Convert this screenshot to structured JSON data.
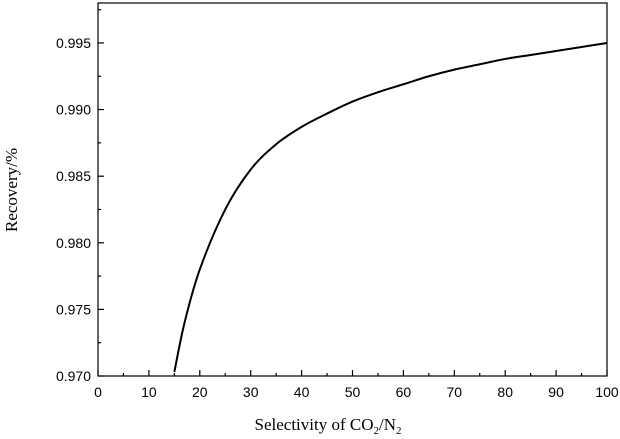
{
  "chart_data": {
    "type": "line",
    "title": "",
    "xlabel": {
      "prefix": "Selectivity of CO",
      "sub1": "2",
      "mid": "/N",
      "sub2": "2"
    },
    "ylabel": "Recovery/%",
    "xlim": [
      0,
      100
    ],
    "ylim": [
      0.97,
      0.998
    ],
    "xticks": [
      0,
      10,
      20,
      30,
      40,
      50,
      60,
      70,
      80,
      90,
      100
    ],
    "yticks": [
      0.97,
      0.975,
      0.98,
      0.985,
      0.99,
      0.995
    ],
    "ytick_labels": [
      "0.970",
      "0.975",
      "0.980",
      "0.985",
      "0.990",
      "0.995"
    ],
    "grid": false,
    "series": [
      {
        "x": [
          15,
          17,
          20,
          25,
          30,
          35,
          40,
          45,
          50,
          55,
          60,
          65,
          70,
          75,
          80,
          85,
          90,
          95,
          100
        ],
        "y": [
          0.9703,
          0.974,
          0.978,
          0.9825,
          0.9855,
          0.9874,
          0.9887,
          0.9897,
          0.9906,
          0.9913,
          0.9919,
          0.9925,
          0.993,
          0.9934,
          0.9938,
          0.9941,
          0.9944,
          0.9947,
          0.995
        ]
      }
    ]
  }
}
